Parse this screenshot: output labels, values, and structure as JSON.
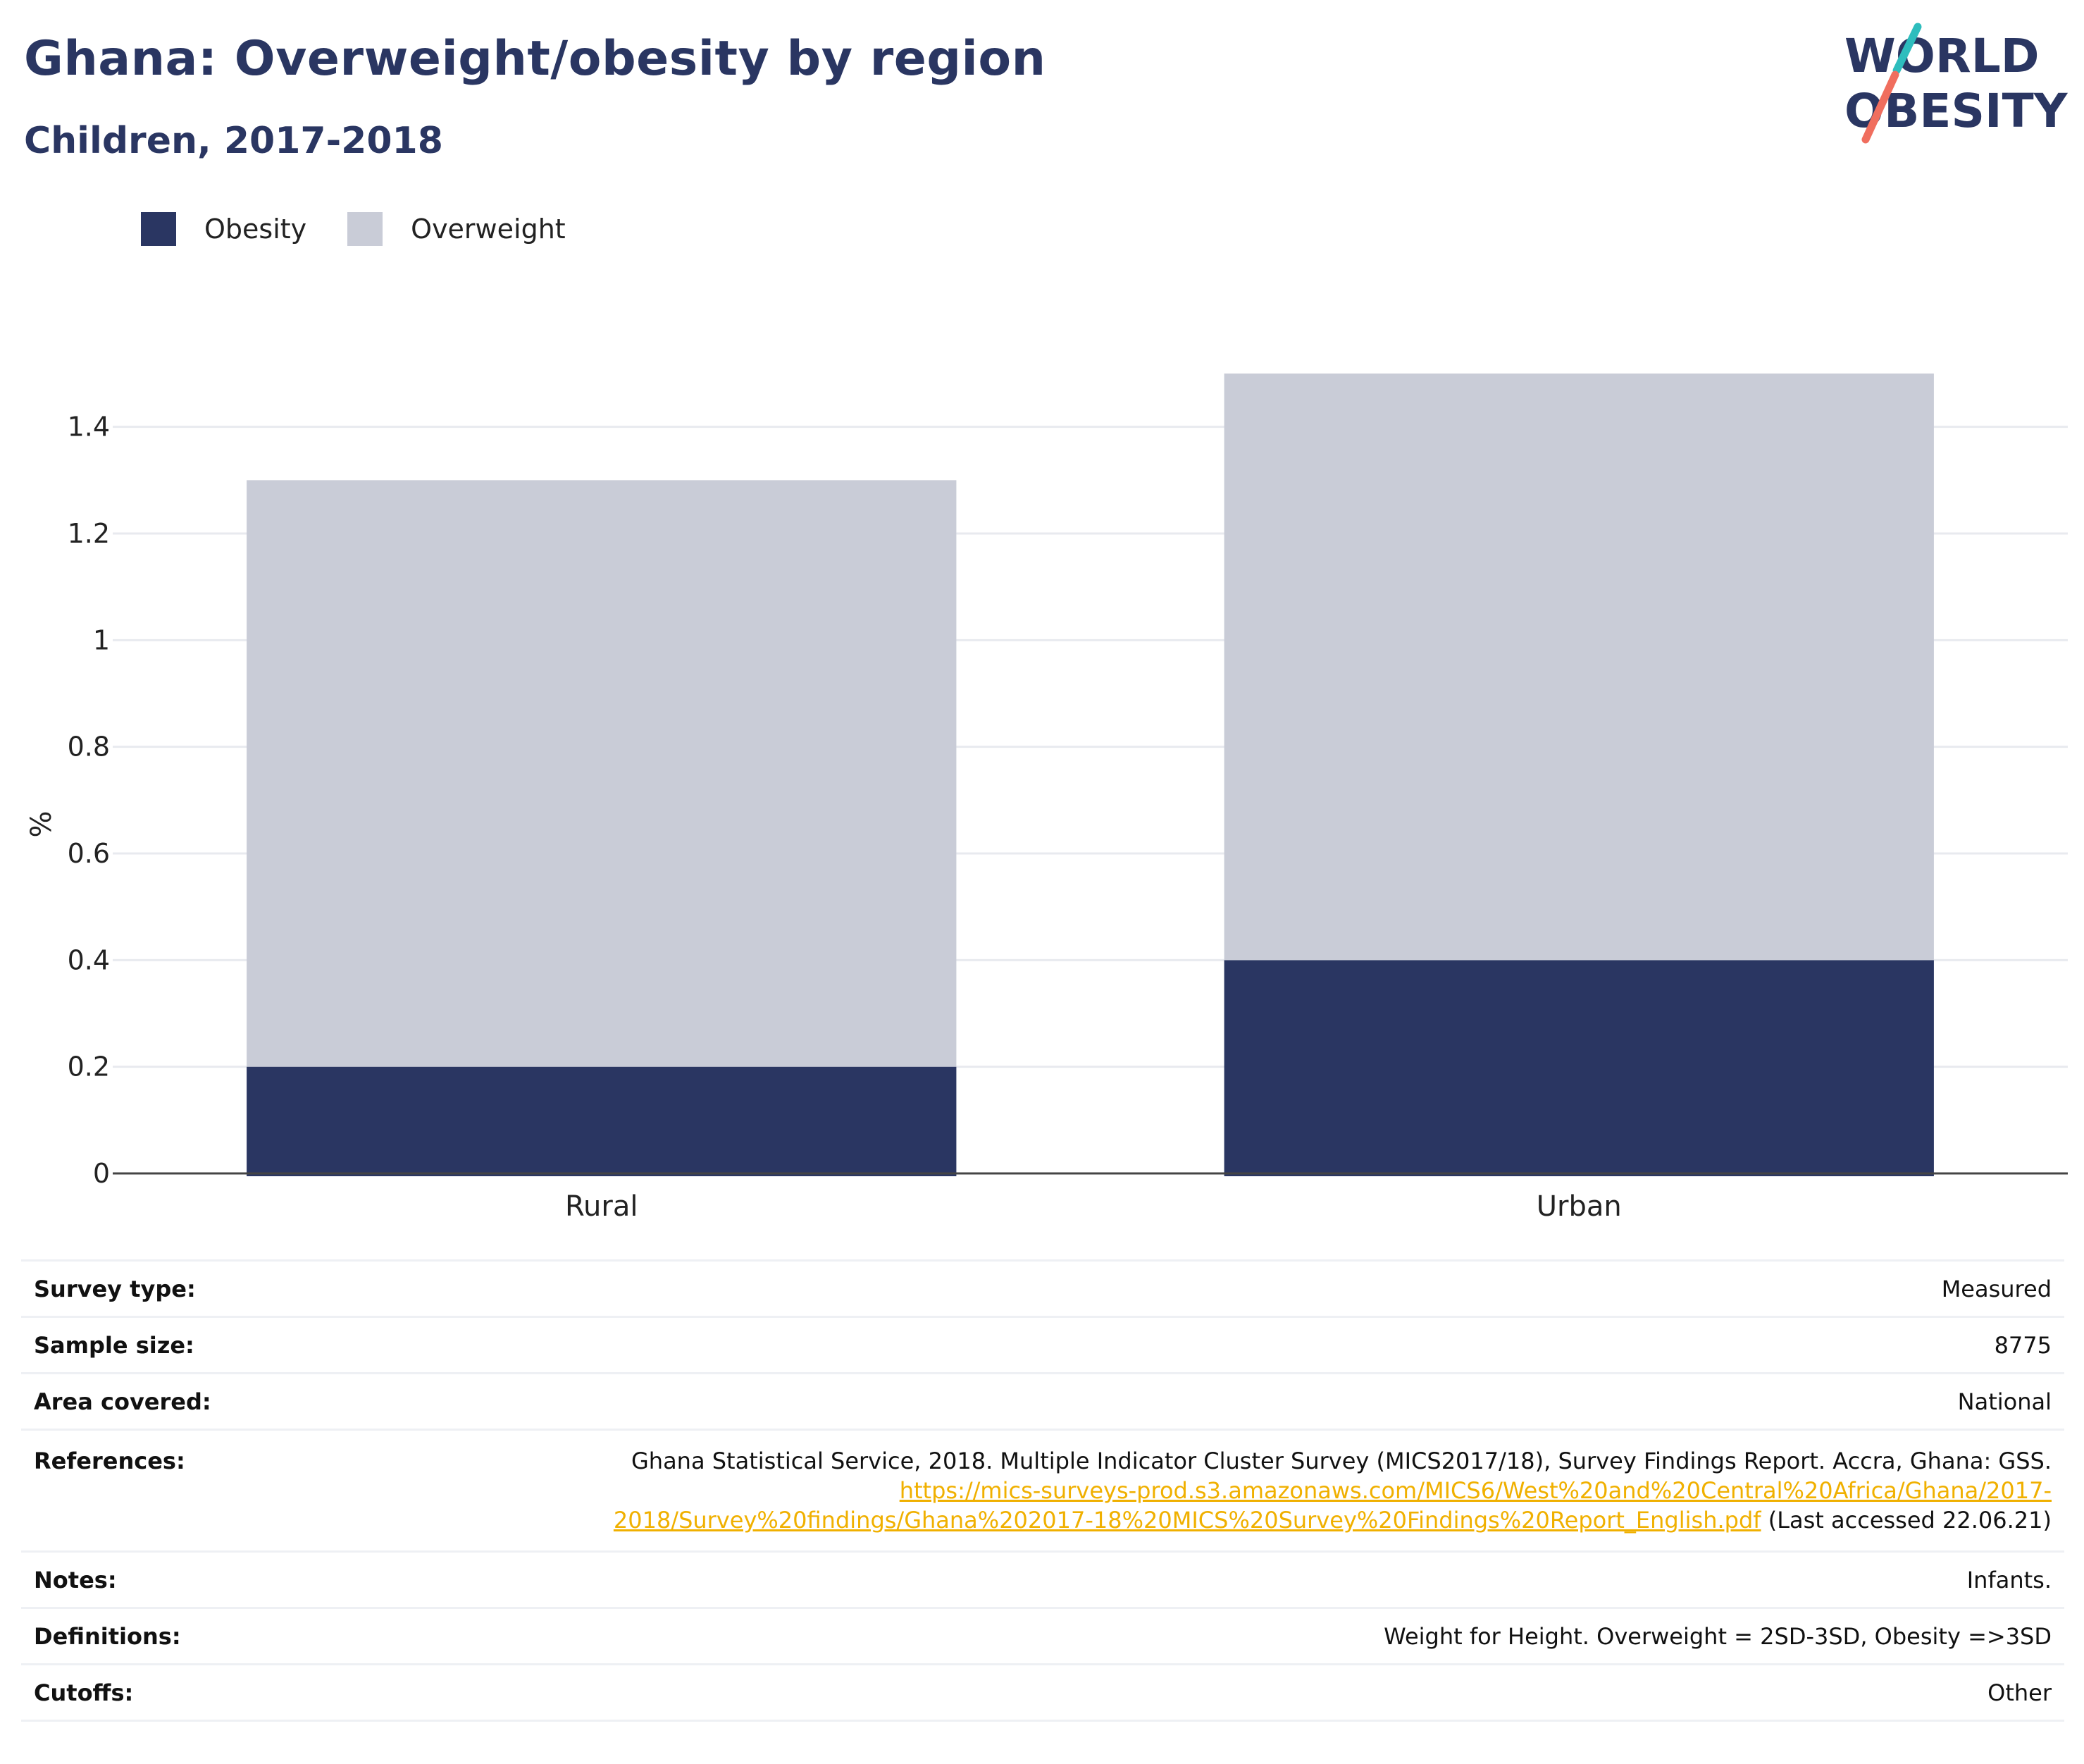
{
  "header": {
    "title": "Ghana: Overweight/obesity by region",
    "subtitle": "Children, 2017-2018"
  },
  "logo": {
    "line1": "WORLD",
    "line2": "OBESITY",
    "colors": {
      "navy": "#2a3662",
      "teal": "#2ebdbd",
      "coral": "#f06e5e"
    }
  },
  "legend": [
    {
      "label": "Obesity",
      "color": "#2a3662"
    },
    {
      "label": "Overweight",
      "color": "#c9ccd7"
    }
  ],
  "chart_data": {
    "type": "bar",
    "stacked": true,
    "categories": [
      "Rural",
      "Urban"
    ],
    "series": [
      {
        "name": "Obesity",
        "color": "#2a3662",
        "values": [
          0.2,
          0.4
        ]
      },
      {
        "name": "Overweight",
        "color": "#c9ccd7",
        "values": [
          1.1,
          1.1
        ]
      }
    ],
    "ylabel": "%",
    "ylim": [
      0,
      1.5
    ],
    "yticks": [
      0,
      0.2,
      0.4,
      0.6,
      0.8,
      1,
      1.2,
      1.4
    ],
    "ytick_labels": [
      "0",
      "0.2",
      "0.4",
      "0.6",
      "0.8",
      "1",
      "1.2",
      "1.4"
    ],
    "grid": true,
    "legend_position": "top-left"
  },
  "info": {
    "survey_type": {
      "label": "Survey type:",
      "value": "Measured"
    },
    "sample_size": {
      "label": "Sample size:",
      "value": "8775"
    },
    "area_covered": {
      "label": "Area covered:",
      "value": "National"
    },
    "references": {
      "label": "References:",
      "text": "Ghana Statistical Service, 2018. Multiple Indicator Cluster Survey (MICS2017/18), Survey Findings Report. Accra, Ghana: GSS.",
      "link_line1": "https://mics-surveys-prod.s3.amazonaws.com/MICS6/West%20and%20Central%20Africa/Ghana/2017-",
      "link_line2": "2018/Survey%20findings/Ghana%202017-18%20MICS%20Survey%20Findings%20Report_English.pdf",
      "suffix": "(Last accessed 22.06.21)"
    },
    "notes": {
      "label": "Notes:",
      "value": "Infants."
    },
    "definitions": {
      "label": "Definitions:",
      "value": "Weight for Height. Overweight = 2SD-3SD, Obesity =>3SD"
    },
    "cutoffs": {
      "label": "Cutoffs:",
      "value": "Other"
    }
  }
}
